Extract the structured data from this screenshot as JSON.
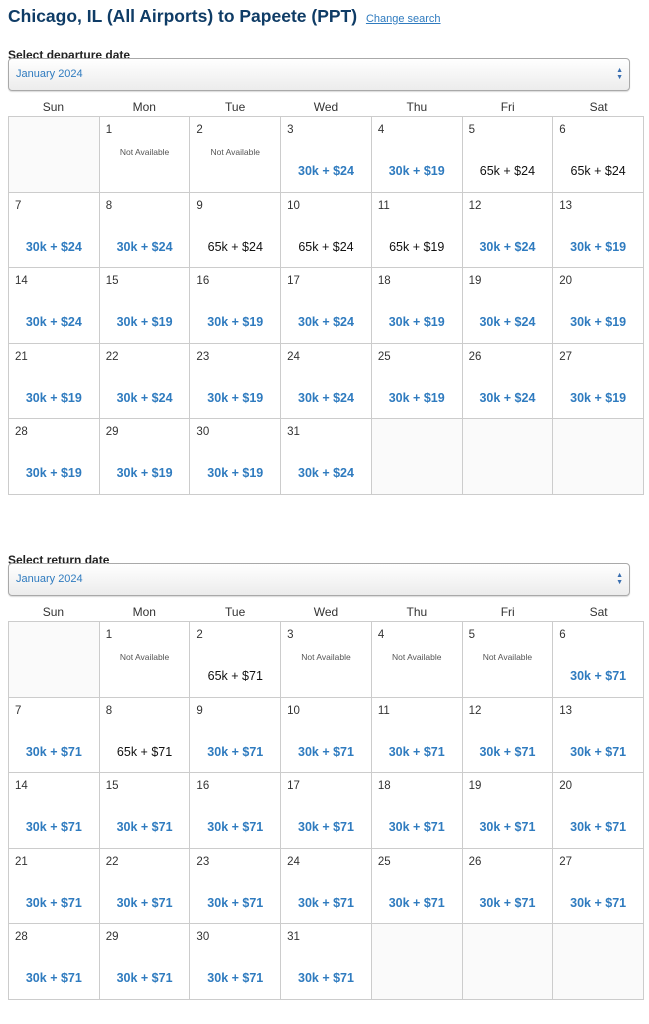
{
  "header": {
    "title": "Chicago, IL (All Airports) to Papeete (PPT)",
    "change_search": "Change search"
  },
  "weekdays": [
    "Sun",
    "Mon",
    "Tue",
    "Wed",
    "Thu",
    "Fri",
    "Sat"
  ],
  "colors": {
    "saver": "#2f7bbf",
    "title": "#0f3c66"
  },
  "departure": {
    "label": "Select departure date",
    "month": "January 2024",
    "leading_blank_days": 1,
    "days": [
      {
        "day": "1",
        "status": "Not Available"
      },
      {
        "day": "2",
        "status": "Not Available"
      },
      {
        "day": "3",
        "price": "30k + $24",
        "type": "saver"
      },
      {
        "day": "4",
        "price": "30k + $19",
        "type": "saver"
      },
      {
        "day": "5",
        "price": "65k + $24",
        "type": "main"
      },
      {
        "day": "6",
        "price": "65k + $24",
        "type": "main"
      },
      {
        "day": "7",
        "price": "30k + $24",
        "type": "saver"
      },
      {
        "day": "8",
        "price": "30k + $24",
        "type": "saver"
      },
      {
        "day": "9",
        "price": "65k + $24",
        "type": "main"
      },
      {
        "day": "10",
        "price": "65k + $24",
        "type": "main"
      },
      {
        "day": "11",
        "price": "65k + $19",
        "type": "main"
      },
      {
        "day": "12",
        "price": "30k + $24",
        "type": "saver"
      },
      {
        "day": "13",
        "price": "30k + $19",
        "type": "saver"
      },
      {
        "day": "14",
        "price": "30k + $24",
        "type": "saver"
      },
      {
        "day": "15",
        "price": "30k + $19",
        "type": "saver"
      },
      {
        "day": "16",
        "price": "30k + $19",
        "type": "saver"
      },
      {
        "day": "17",
        "price": "30k + $24",
        "type": "saver"
      },
      {
        "day": "18",
        "price": "30k + $19",
        "type": "saver"
      },
      {
        "day": "19",
        "price": "30k + $24",
        "type": "saver"
      },
      {
        "day": "20",
        "price": "30k + $19",
        "type": "saver"
      },
      {
        "day": "21",
        "price": "30k + $19",
        "type": "saver"
      },
      {
        "day": "22",
        "price": "30k + $24",
        "type": "saver"
      },
      {
        "day": "23",
        "price": "30k + $19",
        "type": "saver"
      },
      {
        "day": "24",
        "price": "30k + $24",
        "type": "saver"
      },
      {
        "day": "25",
        "price": "30k + $19",
        "type": "saver"
      },
      {
        "day": "26",
        "price": "30k + $24",
        "type": "saver"
      },
      {
        "day": "27",
        "price": "30k + $19",
        "type": "saver"
      },
      {
        "day": "28",
        "price": "30k + $19",
        "type": "saver"
      },
      {
        "day": "29",
        "price": "30k + $19",
        "type": "saver"
      },
      {
        "day": "30",
        "price": "30k + $19",
        "type": "saver"
      },
      {
        "day": "31",
        "price": "30k + $24",
        "type": "saver"
      }
    ]
  },
  "return": {
    "label": "Select return date",
    "month": "January 2024",
    "leading_blank_days": 1,
    "days": [
      {
        "day": "1",
        "status": "Not Available"
      },
      {
        "day": "2",
        "price": "65k + $71",
        "type": "main"
      },
      {
        "day": "3",
        "status": "Not Available"
      },
      {
        "day": "4",
        "status": "Not Available"
      },
      {
        "day": "5",
        "status": "Not Available"
      },
      {
        "day": "6",
        "price": "30k + $71",
        "type": "saver"
      },
      {
        "day": "7",
        "price": "30k + $71",
        "type": "saver"
      },
      {
        "day": "8",
        "price": "65k + $71",
        "type": "main"
      },
      {
        "day": "9",
        "price": "30k + $71",
        "type": "saver"
      },
      {
        "day": "10",
        "price": "30k + $71",
        "type": "saver"
      },
      {
        "day": "11",
        "price": "30k + $71",
        "type": "saver"
      },
      {
        "day": "12",
        "price": "30k + $71",
        "type": "saver"
      },
      {
        "day": "13",
        "price": "30k + $71",
        "type": "saver"
      },
      {
        "day": "14",
        "price": "30k + $71",
        "type": "saver"
      },
      {
        "day": "15",
        "price": "30k + $71",
        "type": "saver"
      },
      {
        "day": "16",
        "price": "30k + $71",
        "type": "saver"
      },
      {
        "day": "17",
        "price": "30k + $71",
        "type": "saver"
      },
      {
        "day": "18",
        "price": "30k + $71",
        "type": "saver"
      },
      {
        "day": "19",
        "price": "30k + $71",
        "type": "saver"
      },
      {
        "day": "20",
        "price": "30k + $71",
        "type": "saver"
      },
      {
        "day": "21",
        "price": "30k + $71",
        "type": "saver"
      },
      {
        "day": "22",
        "price": "30k + $71",
        "type": "saver"
      },
      {
        "day": "23",
        "price": "30k + $71",
        "type": "saver"
      },
      {
        "day": "24",
        "price": "30k + $71",
        "type": "saver"
      },
      {
        "day": "25",
        "price": "30k + $71",
        "type": "saver"
      },
      {
        "day": "26",
        "price": "30k + $71",
        "type": "saver"
      },
      {
        "day": "27",
        "price": "30k + $71",
        "type": "saver"
      },
      {
        "day": "28",
        "price": "30k + $71",
        "type": "saver"
      },
      {
        "day": "29",
        "price": "30k + $71",
        "type": "saver"
      },
      {
        "day": "30",
        "price": "30k + $71",
        "type": "saver"
      },
      {
        "day": "31",
        "price": "30k + $71",
        "type": "saver"
      }
    ]
  }
}
